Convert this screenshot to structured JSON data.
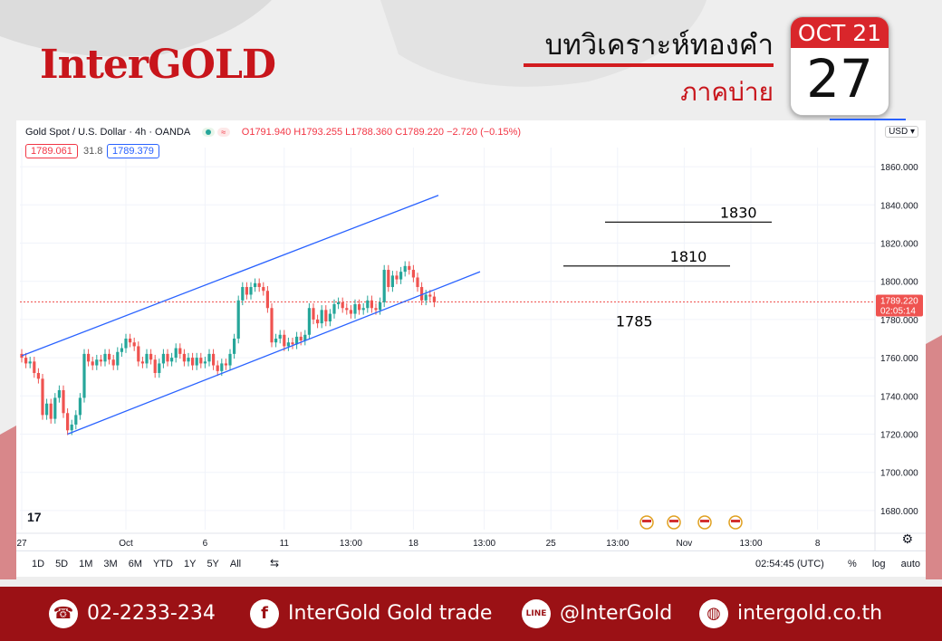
{
  "brand": {
    "logo": "InterGOLD"
  },
  "header": {
    "title_th": "บทวิเคราะห์ทองคำ",
    "session_th": "ภาคบ่าย"
  },
  "calendar": {
    "month_day": "OCT 21",
    "day": "27"
  },
  "chart_header": {
    "symbol": "Gold Spot / U.S. Dollar · 4h · OANDA",
    "ohlc": "O1791.940  H1793.255  L1788.360  C1789.220  −2.720 (−0.15%)",
    "bid": "1789.061",
    "spread": "31.8",
    "ask": "1789.379",
    "currency": "USD",
    "logo": "17"
  },
  "price_tag": {
    "price": "1789.220",
    "countdown": "02:05:14"
  },
  "toolbar": {
    "timeframes": [
      "1D",
      "5D",
      "1M",
      "3M",
      "6M",
      "YTD",
      "1Y",
      "5Y",
      "All"
    ],
    "time_utc": "02:54:45 (UTC)",
    "percent": "%",
    "log": "log",
    "auto": "auto"
  },
  "footer": {
    "phone": "02-2233-234",
    "facebook": "InterGold Gold trade",
    "line": "@InterGold",
    "website": "intergold.co.th"
  },
  "colors": {
    "brand_red": "#c8151b",
    "up": "#26a69a",
    "down": "#ef5350",
    "channel": "#2962ff"
  },
  "chart_data": {
    "type": "candlestick",
    "ylim": [
      1670,
      1870
    ],
    "yticks": [
      1680,
      1700,
      1720,
      1740,
      1760,
      1780,
      1800,
      1820,
      1840,
      1860
    ],
    "ytick_labels": [
      "1680.000",
      "1700.000",
      "1720.000",
      "1740.000",
      "1760.000",
      "1780.000",
      "1800.000",
      "1820.000",
      "1840.000",
      "1860.000"
    ],
    "xtick_labels": [
      "27",
      "Oct",
      "6",
      "11",
      "13:00",
      "18",
      "13:00",
      "25",
      "13:00",
      "Nov",
      "13:00",
      "8"
    ],
    "xtick_index": [
      0,
      25,
      44,
      63,
      79,
      94,
      111,
      127,
      143,
      159,
      175,
      191
    ],
    "last_price": 1789.22,
    "candles_close": [
      1760,
      1757,
      1758,
      1752,
      1749,
      1730,
      1736,
      1728,
      1739,
      1743,
      1731,
      1722,
      1725,
      1730,
      1739,
      1762,
      1758,
      1756,
      1759,
      1758,
      1762,
      1759,
      1756,
      1763,
      1765,
      1770,
      1768,
      1766,
      1758,
      1757,
      1762,
      1759,
      1752,
      1757,
      1762,
      1758,
      1760,
      1765,
      1762,
      1758,
      1760,
      1756,
      1760,
      1757,
      1758,
      1762,
      1756,
      1753,
      1757,
      1756,
      1762,
      1770,
      1790,
      1797,
      1793,
      1797,
      1799,
      1797,
      1795,
      1786,
      1768,
      1770,
      1772,
      1766,
      1768,
      1767,
      1771,
      1769,
      1772,
      1786,
      1780,
      1778,
      1785,
      1779,
      1783,
      1788,
      1789,
      1786,
      1785,
      1783,
      1788,
      1785,
      1786,
      1790,
      1786,
      1785,
      1789,
      1806,
      1797,
      1803,
      1801,
      1805,
      1808,
      1806,
      1802,
      1797,
      1790,
      1793,
      1792,
      1789
    ],
    "annotations": [
      {
        "label": "1830",
        "price": 1831
      },
      {
        "label": "1810",
        "price": 1808
      },
      {
        "label": "1785",
        "price": 1785
      }
    ],
    "channel_upper": [
      [
        0,
        1761
      ],
      [
        100,
        1845
      ]
    ],
    "channel_lower": [
      [
        11,
        1720
      ],
      [
        110,
        1805
      ]
    ]
  }
}
